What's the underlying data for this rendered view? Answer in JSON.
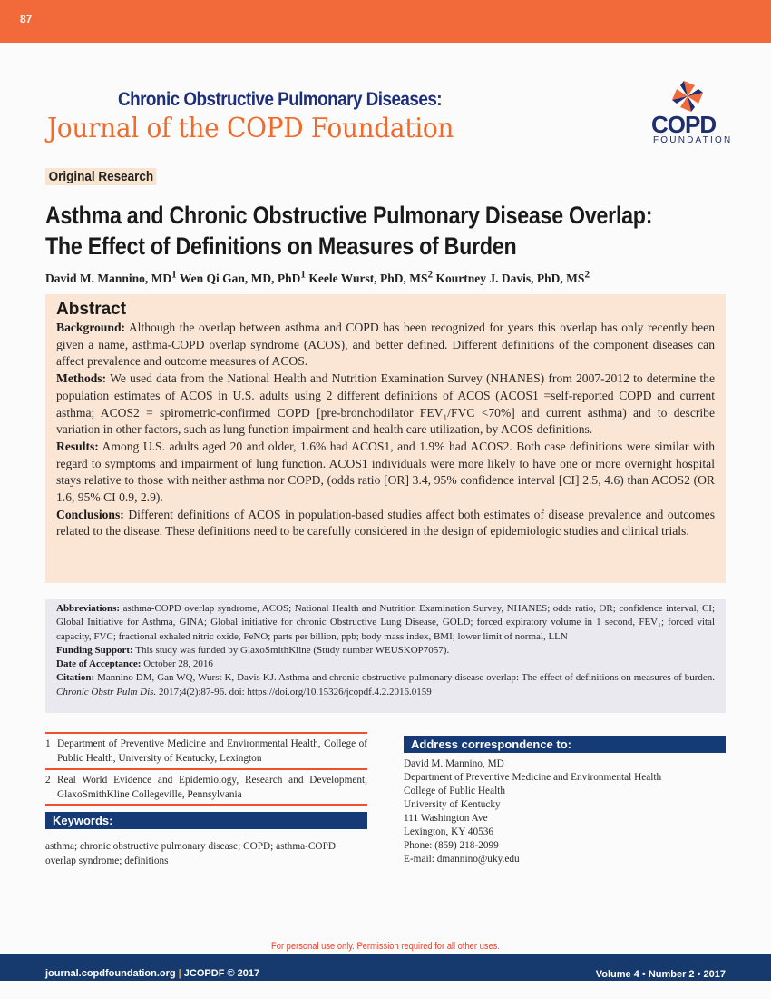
{
  "header": {
    "page_number": "87",
    "journal_line1": "Chronic Obstructive Pulmonary Diseases:",
    "journal_line2": "Journal of the COPD Foundation",
    "logo_text": "COPD",
    "logo_subtext": "FOUNDATION",
    "colors": {
      "orange": "#f26a3a",
      "navy": "#153a75"
    }
  },
  "article": {
    "section_label": "Original Research",
    "title": "Asthma and Chronic Obstructive Pulmonary Disease Overlap: The Effect of Definitions on Measures of Burden",
    "authors": [
      {
        "name": "David M. Mannino, MD",
        "aff": "1"
      },
      {
        "name": "Wen Qi Gan, MD, PhD",
        "aff": "1"
      },
      {
        "name": "Keele Wurst, PhD, MS",
        "aff": "2"
      },
      {
        "name": "Kourtney J. Davis, PhD, MS",
        "aff": "2"
      }
    ]
  },
  "abstract": {
    "heading": "Abstract",
    "sections": [
      {
        "label": "Background:",
        "text": " Although the overlap between asthma and COPD has been recognized for years this overlap has only recently been given a name, asthma-COPD overlap syndrome (ACOS), and better defined.  Different definitions of the component diseases can affect prevalence and outcome measures of ACOS."
      },
      {
        "label": "Methods:",
        "text": " We used data from the National Health and Nutrition Examination Survey (NHANES) from 2007-2012 to determine the population estimates of ACOS in U.S. adults using 2 different definitions of ACOS (ACOS1 =self-reported COPD and current asthma; ACOS2 = spirometric-confirmed COPD [pre-bronchodilator FEV₁/FVC <70%] and current asthma) and to describe variation in other factors, such as lung function impairment and health care utilization, by ACOS definitions."
      },
      {
        "label": "Results:",
        "text": " Among U.S. adults aged 20 and older, 1.6% had ACOS1, and 1.9% had ACOS2.  Both case definitions were similar with regard to symptoms and impairment of lung function.  ACOS1 individuals  were more likely to have one or more overnight hospital stays relative to those with neither asthma nor COPD, (odds ratio [OR] 3.4, 95% confidence interval [CI] 2.5, 4.6) than ACOS2 (OR 1.6, 95% CI 0.9, 2.9)."
      },
      {
        "label": "Conclusions:",
        "text": " Different definitions of ACOS in population-based studies affect both estimates of disease prevalence and outcomes related to the disease.  These definitions need to be carefully considered in the design of epidemiologic studies and clinical trials."
      }
    ]
  },
  "info": {
    "abbreviations_label": "Abbreviations:",
    "abbreviations_text": " asthma-COPD overlap syndrome, ACOS; National Health and Nutrition  Examination Survey, NHANES; odds ratio, OR; confidence interval, CI; Global Initiative for Asthma, GINA; Global initiative for chronic Obstructive Lung Disease, GOLD; forced expiratory volume in 1 second, FEV₁; forced vital capacity, FVC; fractional exhaled nitric oxide, FeNO; parts per billion, ppb; body mass index, BMI; lower limit of normal, LLN",
    "funding_label": "Funding Support:",
    "funding_text": " This study was funded by GlaxoSmithKline (Study number WEUSKOP7057).",
    "acceptance_label": "Date of Acceptance:",
    "acceptance_text": " October 28, 2016",
    "citation_label": "Citation:",
    "citation_text": " Mannino DM, Gan WQ, Wurst K, Davis KJ. Asthma and chronic obstructive pulmonary disease overlap: The effect of definitions on measures of burden. ",
    "citation_journal": "Chronic Obstr Pulm Dis.",
    "citation_tail": " 2017;4(2):87-96. doi: https://doi.org/10.15326/jcopdf.4.2.2016.0159"
  },
  "affiliations": [
    {
      "num": "1",
      "text": "Department of Preventive Medicine and Environmental Health, College of Public Health, University of Kentucky, Lexington"
    },
    {
      "num": "2",
      "text": "Real World Evidence and Epidemiology, Research and Development, GlaxoSmithKline Collegeville, Pennsylvania"
    }
  ],
  "keywords": {
    "heading": "Keywords:",
    "text": "asthma; chronic obstructive pulmonary disease; COPD; asthma-COPD overlap syndrome; definitions"
  },
  "correspondence": {
    "heading": "Address correspondence to:",
    "lines": [
      "David M. Mannino, MD",
      "Department of Preventive Medicine and Environmental Health",
      "College of Public Health",
      "University of Kentucky",
      "111 Washington Ave",
      "Lexington, KY 40536",
      "Phone: (859) 218-2099",
      "E-mail: dmannino@uky.edu"
    ]
  },
  "footer": {
    "notice": "For personal use only. Permission required for all other uses.",
    "site": "journal.copdfoundation.org",
    "separator": "|",
    "copyright": "JCOPDF © 2017",
    "issue": "Volume 4 • Number 2 • 2017"
  }
}
